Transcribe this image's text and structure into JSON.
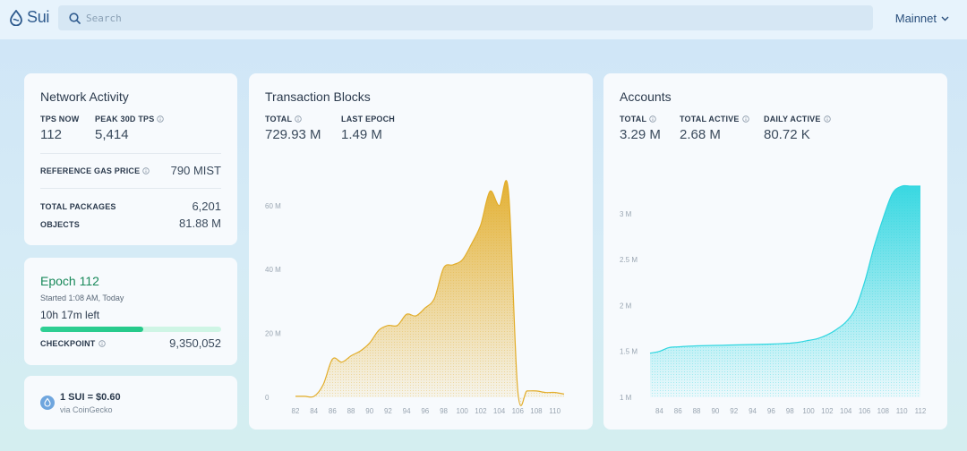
{
  "header": {
    "logo_text": "Sui",
    "search_placeholder": "Search",
    "network": "Mainnet"
  },
  "network_activity": {
    "title": "Network Activity",
    "tps_now_label": "TPS NOW",
    "tps_now": "112",
    "peak_label": "PEAK 30D TPS",
    "peak": "5,414",
    "gas_label": "REFERENCE GAS PRICE",
    "gas": "790 MIST",
    "packages_label": "TOTAL PACKAGES",
    "packages": "6,201",
    "objects_label": "OBJECTS",
    "objects": "81.88 M"
  },
  "epoch": {
    "title": "Epoch 112",
    "started": "Started 1:08 AM, Today",
    "left": "10h 17m left",
    "progress": 0.57,
    "checkpoint_label": "CHECKPOINT",
    "checkpoint": "9,350,052"
  },
  "price": {
    "text": "1 SUI = $0.60",
    "source": "via CoinGecko"
  },
  "tx_blocks": {
    "title": "Transaction Blocks",
    "total_label": "TOTAL",
    "total": "729.93 M",
    "last_epoch_label": "LAST EPOCH",
    "last_epoch": "1.49 M"
  },
  "accounts": {
    "title": "Accounts",
    "total_label": "TOTAL",
    "total": "3.29 M",
    "active_label": "TOTAL ACTIVE",
    "active": "2.68 M",
    "daily_label": "DAILY ACTIVE",
    "daily": "80.72 K"
  },
  "colors": {
    "tx_line": "#e2ad2a",
    "acc_line": "#2fd6e0",
    "epoch_green": "#19895a"
  },
  "chart_data": [
    {
      "type": "area",
      "title": "Transaction Blocks",
      "y_unit": "M",
      "ylim": [
        0,
        65
      ],
      "y_ticks": [
        0,
        20,
        40,
        60
      ],
      "y_tick_labels": [
        "0",
        "20 M",
        "40 M",
        "60 M"
      ],
      "x_ticks": [
        82,
        84,
        86,
        88,
        90,
        92,
        94,
        96,
        98,
        100,
        102,
        104,
        106,
        108,
        110
      ],
      "x": [
        82,
        83,
        84,
        85,
        86,
        87,
        88,
        89,
        90,
        91,
        92,
        93,
        94,
        95,
        96,
        97,
        98,
        99,
        100,
        101,
        102,
        103,
        104,
        105,
        106,
        107,
        108,
        109,
        110,
        111
      ],
      "values": [
        0.3,
        0.3,
        0.3,
        4,
        12,
        11,
        13,
        14.5,
        17,
        21,
        22.5,
        22.5,
        26,
        25.5,
        28,
        31,
        40.5,
        41.5,
        43,
        48,
        54,
        64.5,
        60,
        64.5,
        2,
        2,
        2,
        1.5,
        1.5,
        1
      ]
    },
    {
      "type": "area",
      "title": "Accounts",
      "y_unit": "M",
      "ylim": [
        1,
        3.3
      ],
      "y_ticks": [
        1,
        1.5,
        2,
        2.5,
        3
      ],
      "y_tick_labels": [
        "1 M",
        "1.5 M",
        "2 M",
        "2.5 M",
        "3 M"
      ],
      "x_ticks": [
        84,
        86,
        88,
        90,
        92,
        94,
        96,
        98,
        100,
        102,
        104,
        106,
        108,
        110,
        112
      ],
      "x": [
        83,
        84,
        85,
        86,
        88,
        90,
        92,
        94,
        96,
        98,
        99,
        100,
        101,
        102,
        103,
        104,
        105,
        106,
        107,
        108,
        109,
        110,
        111,
        112
      ],
      "values": [
        1.48,
        1.5,
        1.54,
        1.55,
        1.56,
        1.565,
        1.57,
        1.575,
        1.58,
        1.59,
        1.6,
        1.62,
        1.64,
        1.68,
        1.74,
        1.82,
        1.96,
        2.25,
        2.63,
        2.95,
        3.22,
        3.3,
        3.3,
        3.3
      ]
    }
  ]
}
